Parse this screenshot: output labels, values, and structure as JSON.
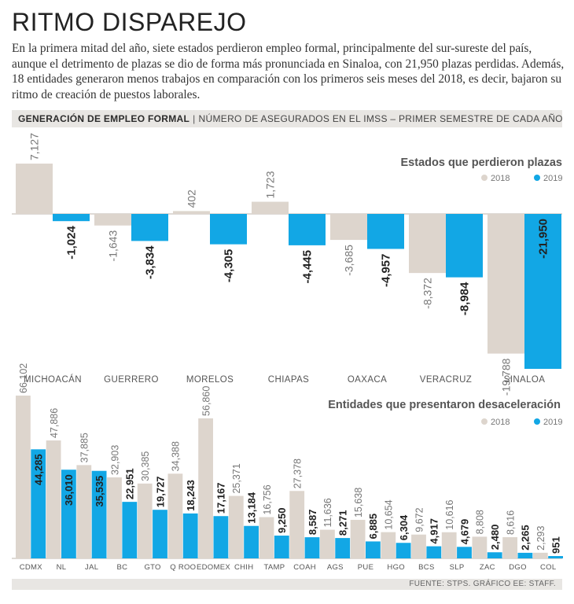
{
  "title": "RITMO DISPAREJO",
  "intro": "En la primera mitad del año, siete estados perdieron empleo formal, principalmente del sur-sureste del país, aunque el detrimento de plazas se dio de forma más pronunciada en Sinaloa, con 21,950 plazas perdidas. Además, 18 entidades generaron menos trabajos en comparación con los primeros seis meses del 2018, es decir, bajaron su ritmo de creación de puestos laborales.",
  "band": {
    "bold": "GENERACIÓN DE EMPLEO FORMAL",
    "separator": "|",
    "rest": "NÚMERO DE ASEGURADOS EN EL IMSS – PRIMER SEMESTRE DE CADA AÑO"
  },
  "footer": "FUENTE: STPS. GRÁFICO EE: STAFF.",
  "colors": {
    "y2018": "#ddd5cd",
    "y2019": "#12a7e5"
  },
  "chart_data": [
    {
      "type": "bar",
      "title": "Estados que perdieron plazas",
      "legend": [
        "2018",
        "2019"
      ],
      "categories": [
        "MICHOACÁN",
        "GUERRERO",
        "MORELOS",
        "CHIAPAS",
        "OAXACA",
        "VERACRUZ",
        "SINALOA"
      ],
      "series": [
        {
          "name": "2018",
          "values": [
            7127,
            -1643,
            402,
            1723,
            -3685,
            -8372,
            -19788
          ],
          "labels": [
            "7,127",
            "-1,643",
            "402",
            "1,723",
            "-3,685",
            "-8,372",
            "-19,788"
          ]
        },
        {
          "name": "2019",
          "values": [
            -1024,
            -3834,
            -4305,
            -4445,
            -4957,
            -8984,
            -21950
          ],
          "labels": [
            "-1,024",
            "-3,834",
            "-4,305",
            "-4,445",
            "-4,957",
            "-8,984",
            "-21,950"
          ]
        }
      ],
      "ylim": [
        -22000,
        8000
      ],
      "legend_position": "top-right"
    },
    {
      "type": "bar",
      "title": "Entidades que presentaron desaceleración",
      "legend": [
        "2018",
        "2019"
      ],
      "categories": [
        "CDMX",
        "NL",
        "JAL",
        "BC",
        "GTO",
        "Q ROO",
        "EDOMEX",
        "CHIH",
        "TAMP",
        "COAH",
        "AGS",
        "PUE",
        "HGO",
        "BCS",
        "SLP",
        "ZAC",
        "DGO",
        "COL"
      ],
      "series": [
        {
          "name": "2018",
          "values": [
            66102,
            47886,
            37885,
            32903,
            30385,
            34388,
            56860,
            25371,
            16756,
            27378,
            11636,
            15638,
            10654,
            9672,
            10616,
            8808,
            8616,
            2293
          ],
          "labels": [
            "66,102",
            "47,886",
            "37,885",
            "32,903",
            "30,385",
            "34,388",
            "56,860",
            "25,371",
            "16,756",
            "27,378",
            "11,636",
            "15,638",
            "10,654",
            "9,672",
            "10,616",
            "8,808",
            "8,616",
            "2,293"
          ]
        },
        {
          "name": "2019",
          "values": [
            44285,
            36010,
            35535,
            22951,
            19727,
            18243,
            17167,
            13184,
            9250,
            8587,
            8271,
            6885,
            6304,
            4917,
            4679,
            2480,
            2265,
            951
          ],
          "labels": [
            "44,285",
            "36,010",
            "35,535",
            "22,951",
            "19,727",
            "18,243",
            "17,167",
            "13,184",
            "9,250",
            "8,587",
            "8,271",
            "6,885",
            "6,304",
            "4,917",
            "4,679",
            "2,480",
            "2,265",
            "951"
          ]
        }
      ],
      "ylim": [
        0,
        68000
      ],
      "legend_position": "top-right"
    }
  ]
}
